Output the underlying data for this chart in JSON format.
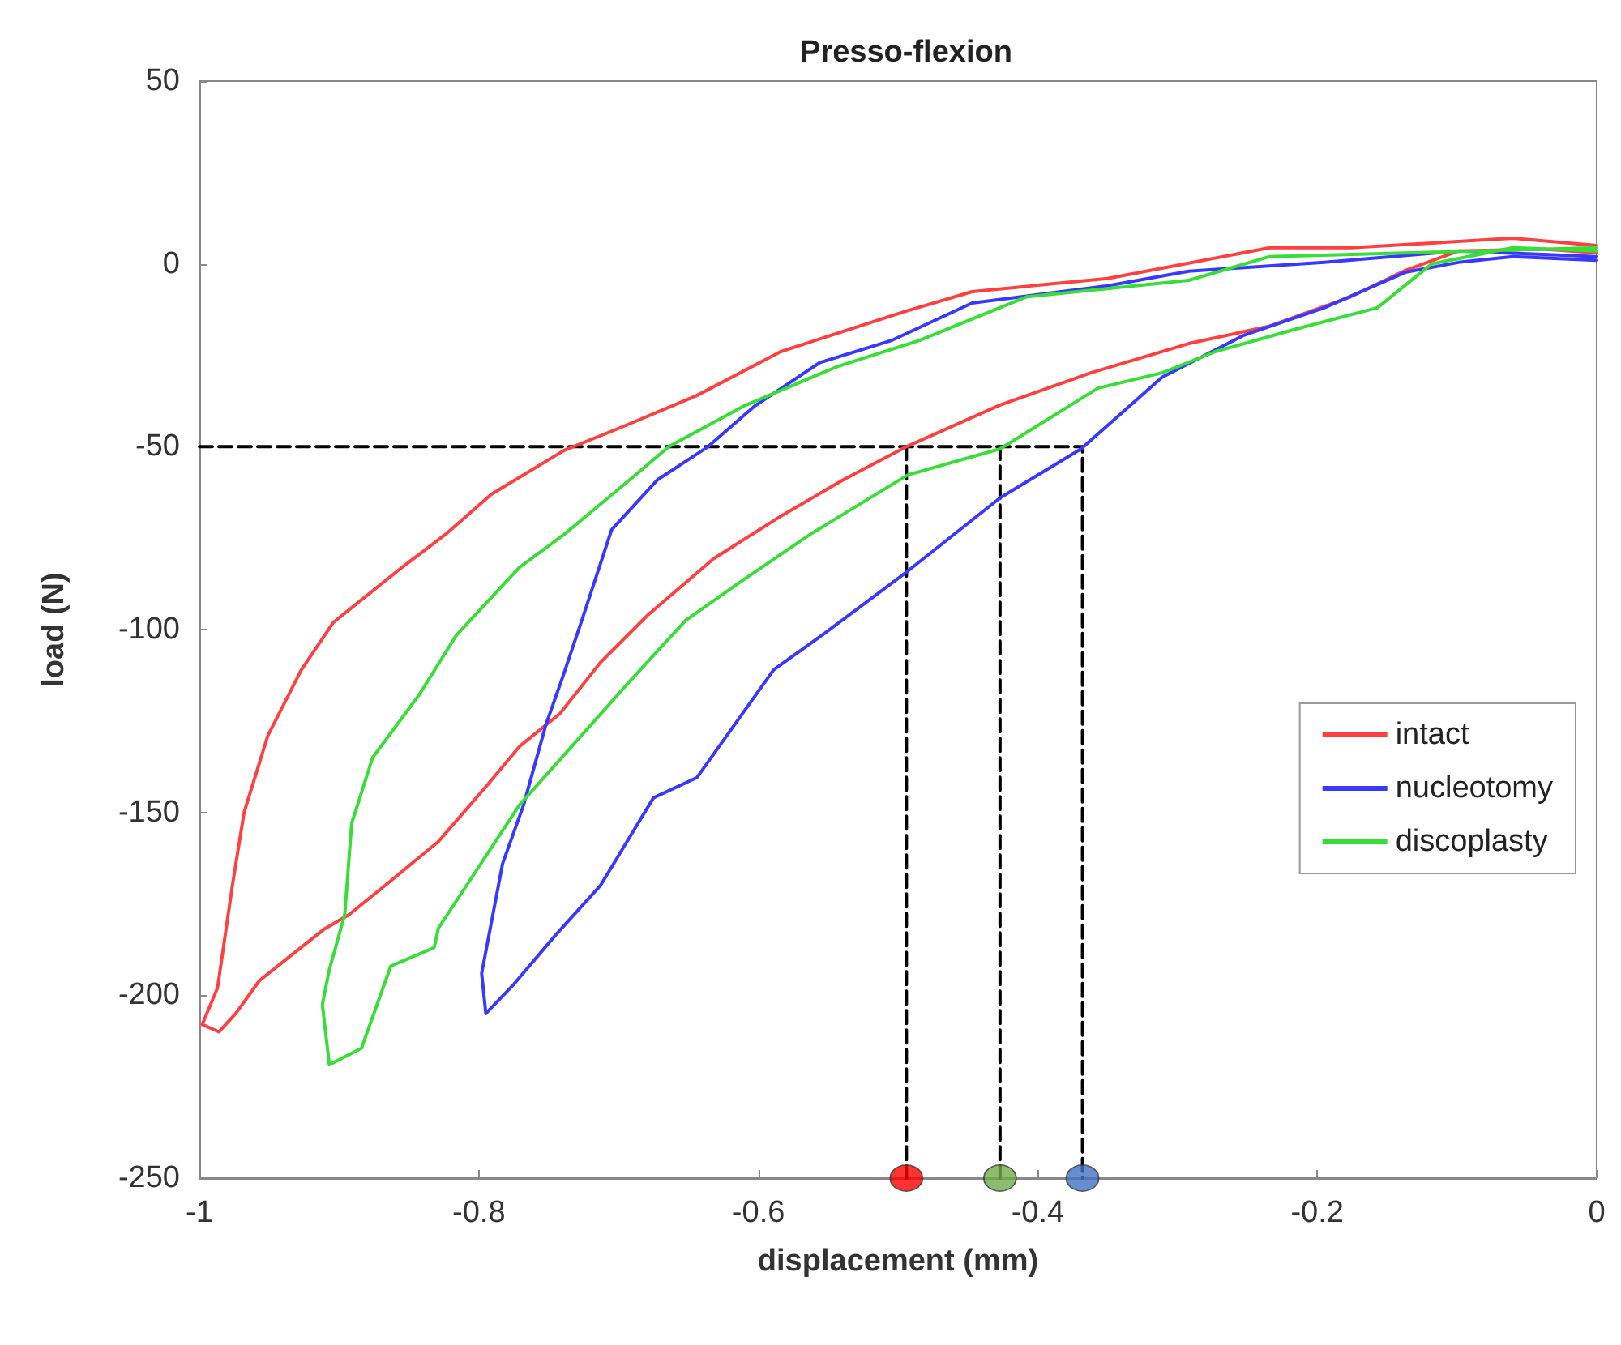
{
  "chart_data": {
    "type": "line",
    "title": "Presso-flexion",
    "xlabel": "displacement (mm)",
    "ylabel": "load (N)",
    "xlim": [
      -1,
      0
    ],
    "xticks": [
      -1,
      -0.8,
      -0.6,
      -0.4,
      -0.2,
      0
    ],
    "ylim": [
      -250,
      50
    ],
    "yticks": [
      -250,
      -200,
      -150,
      -100,
      -50,
      0,
      50
    ],
    "grid": false,
    "legend": "right",
    "marker": "none",
    "line_style": "solid",
    "series": [
      {
        "name": "intact",
        "color": "#ff4040",
        "x": [
          0,
          -0.038,
          -0.099,
          -0.137,
          -0.176,
          -0.234,
          -0.292,
          -0.362,
          -0.427,
          -0.494,
          -0.539,
          -0.586,
          -0.632,
          -0.679,
          -0.713,
          -0.742,
          -0.771,
          -0.795,
          -0.829,
          -0.864,
          -0.893,
          -0.911,
          -0.934,
          -0.957,
          -0.974,
          -0.986,
          -0.998,
          -0.987,
          -0.976,
          -0.968,
          -0.951,
          -0.927,
          -0.904,
          -0.855,
          -0.824,
          -0.791,
          -0.739,
          -0.7,
          -0.644,
          -0.584,
          -0.495,
          -0.447,
          -0.35,
          -0.234,
          -0.176,
          -0.06,
          0
        ],
        "values": [
          3,
          4,
          3.5,
          -1.8,
          -9,
          -17,
          -21.8,
          -29.8,
          -38.6,
          -50,
          -59,
          -69.5,
          -80.6,
          -96,
          -109,
          -123,
          -132,
          -143,
          -158,
          -169,
          -178,
          -182,
          -189,
          -196,
          -205,
          -210,
          -208,
          -198,
          -169,
          -150,
          -129,
          -111,
          -98,
          -83,
          -74,
          -63,
          -51,
          -45,
          -36,
          -24,
          -13,
          -7.6,
          -4,
          4.4,
          4.4,
          7,
          5
        ]
      },
      {
        "name": "nucleotomy",
        "color": "#3838ff",
        "x": [
          0,
          -0.06,
          -0.099,
          -0.137,
          -0.195,
          -0.253,
          -0.311,
          -0.369,
          -0.427,
          -0.493,
          -0.551,
          -0.589,
          -0.644,
          -0.675,
          -0.713,
          -0.745,
          -0.775,
          -0.795,
          -0.798,
          -0.783,
          -0.768,
          -0.752,
          -0.74,
          -0.725,
          -0.705,
          -0.672,
          -0.636,
          -0.603,
          -0.556,
          -0.505,
          -0.447,
          -0.35,
          -0.292,
          -0.195,
          -0.099,
          0
        ],
        "values": [
          1,
          2,
          0.4,
          -2.3,
          -12,
          -19.6,
          -31,
          -50.6,
          -64,
          -84,
          -100.6,
          -111,
          -140.5,
          -146,
          -170,
          -183.5,
          -197,
          -205,
          -194,
          -164,
          -148,
          -126,
          -113,
          -96,
          -72.7,
          -59,
          -50,
          -39,
          -27,
          -21,
          -10.7,
          -6,
          -2,
          0.4,
          3.5,
          2
        ]
      },
      {
        "name": "discoplasty",
        "color": "#38dd38",
        "x": [
          0,
          -0.06,
          -0.118,
          -0.157,
          -0.215,
          -0.273,
          -0.311,
          -0.357,
          -0.427,
          -0.493,
          -0.563,
          -0.613,
          -0.652,
          -0.694,
          -0.771,
          -0.829,
          -0.832,
          -0.863,
          -0.884,
          -0.907,
          -0.912,
          -0.907,
          -0.896,
          -0.891,
          -0.876,
          -0.843,
          -0.816,
          -0.771,
          -0.739,
          -0.695,
          -0.664,
          -0.611,
          -0.543,
          -0.485,
          -0.408,
          -0.292,
          -0.234,
          0
        ],
        "values": [
          3.5,
          4.4,
          0,
          -12,
          -17.8,
          -24,
          -29.8,
          -34,
          -50.6,
          -57.7,
          -74,
          -87,
          -97.5,
          -115,
          -148,
          -181.7,
          -187,
          -192,
          -214.5,
          -219,
          -202.5,
          -193,
          -178,
          -153,
          -135,
          -118,
          -101.5,
          -83,
          -74,
          -60,
          -50,
          -39,
          -28,
          -21,
          -9,
          -4.5,
          2,
          4.4
        ]
      },
      {
        "type": "line",
        "line_style": "dashed",
        "color": "#000000",
        "x": [
          -1,
          -0.368,
          -0.368
        ],
        "values": [
          -50,
          -50,
          -250
        ]
      },
      {
        "type": "line",
        "line_style": "dashed",
        "color": "#000000",
        "x": [
          -0.427,
          -0.427
        ],
        "values": [
          -50,
          -250
        ]
      },
      {
        "type": "line",
        "line_style": "dashed",
        "color": "#000000",
        "x": [
          -0.494,
          -0.494
        ],
        "values": [
          -50,
          -250
        ]
      },
      {
        "type": "scatter",
        "marker": "circle",
        "x": [
          -0.494,
          -0.427,
          -0.368
        ],
        "values": [
          -250,
          -250,
          -250
        ],
        "colors": [
          "#ff0000",
          "#70ad47",
          "#4472c4"
        ]
      }
    ]
  }
}
